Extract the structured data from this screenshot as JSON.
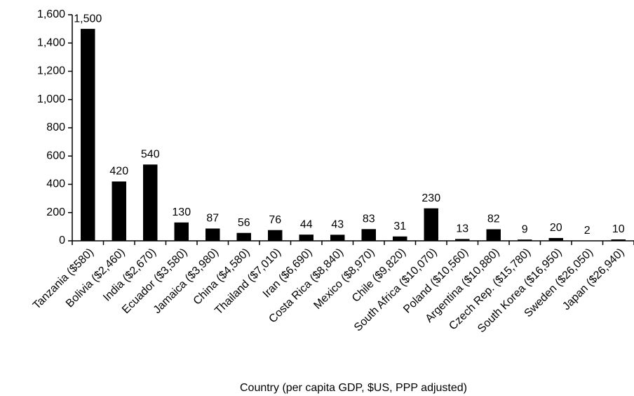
{
  "chart_data": {
    "type": "bar",
    "x_label": "Country (per capita GDP, $US, PPP adjusted)",
    "categories": [
      "Tanzania ($580)",
      "Bolivia ($2,460)",
      "India ($2,670)",
      "Ecuador ($3,580)",
      "Jamaica ($3,980)",
      "China ($4,580)",
      "Thailand ($7,010)",
      "Iran ($6,690)",
      "Costa Rica ($8,840)",
      "Mexico ($8,970)",
      "Chile ($9,820)",
      "South Africa ($10,070)",
      "Poland ($10,560)",
      "Argentina ($10,880)",
      "Czech Rep. ($15,780)",
      "South Korea ($16,950)",
      "Sweden ($26,050)",
      "Japan ($26,940)"
    ],
    "values": [
      1500,
      420,
      540,
      130,
      87,
      56,
      76,
      44,
      43,
      83,
      31,
      230,
      13,
      82,
      9,
      20,
      2,
      10
    ],
    "value_labels": [
      "1,500",
      "420",
      "540",
      "130",
      "87",
      "56",
      "76",
      "44",
      "43",
      "83",
      "31",
      "230",
      "13",
      "82",
      "9",
      "20",
      "2",
      "10"
    ],
    "color": "#000000",
    "ylim": [
      0,
      1600
    ],
    "yticks": [
      0,
      200,
      400,
      600,
      800,
      {
        "value": 1000,
        "label": "1,000"
      },
      {
        "value": 1200,
        "label": "1,200"
      },
      {
        "value": 1400,
        "label": "1,400"
      },
      {
        "value": 1600,
        "label": "1,600"
      }
    ]
  }
}
